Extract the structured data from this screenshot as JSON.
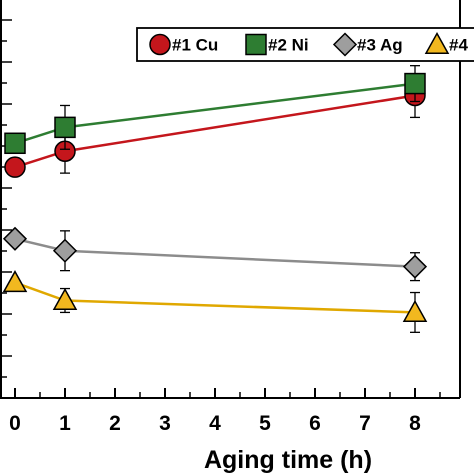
{
  "chart_data": {
    "type": "line",
    "title": "",
    "xlabel": "Aging time (h)",
    "ylabel": "",
    "x_ticks": [
      "0",
      "1",
      "2",
      "3",
      "4",
      "5",
      "6",
      "7",
      "8"
    ],
    "xlim": [
      -0.3,
      8.9
    ],
    "ylim": [
      0,
      10
    ],
    "grid": false,
    "legend_position": "top",
    "series": [
      {
        "name": "#1 Cu",
        "color": "#c4161c",
        "edge_color": "#000000",
        "line_color": "#c4161c",
        "marker": "circle",
        "x": [
          0,
          1,
          8
        ],
        "y": [
          5.8,
          6.2,
          7.6
        ],
        "err": [
          0,
          0.55,
          0.55
        ]
      },
      {
        "name": "#2 Ni",
        "color": "#2e7d32",
        "edge_color": "#000000",
        "line_color": "#2e7d32",
        "marker": "square",
        "x": [
          0,
          1,
          8
        ],
        "y": [
          6.4,
          6.8,
          7.9
        ],
        "err": [
          0,
          0.55,
          0.45
        ]
      },
      {
        "name": "#3 Ag",
        "color": "#9e9e9e",
        "edge_color": "#000000",
        "line_color": "#8c8c8c",
        "marker": "diamond",
        "x": [
          0,
          1,
          8
        ],
        "y": [
          4.0,
          3.7,
          3.3
        ],
        "err": [
          0,
          0.5,
          0.35
        ]
      },
      {
        "name": "#4",
        "color": "#f2b81f",
        "edge_color": "#000000",
        "line_color": "#e0a800",
        "marker": "triangle",
        "x": [
          0,
          1,
          8
        ],
        "y": [
          2.9,
          2.45,
          2.15
        ],
        "err": [
          0,
          0.3,
          0.5
        ]
      }
    ]
  }
}
